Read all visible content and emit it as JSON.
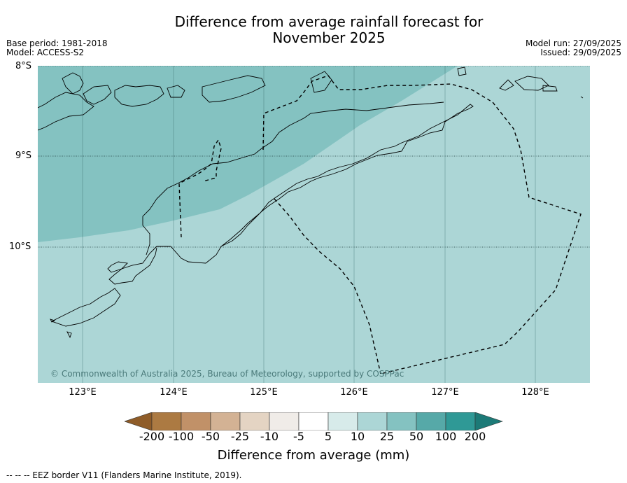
{
  "title": {
    "line1": "Difference from average rainfall forecast for",
    "line2": "November 2025"
  },
  "meta": {
    "base_period": "Base period: 1981-2018",
    "model": "Model: ACCESS-S2",
    "model_run": "Model run: 27/09/2025",
    "issued": "Issued: 29/09/2025"
  },
  "map": {
    "lat_labels": [
      "8°S",
      "9°S",
      "10°S"
    ],
    "lon_labels": [
      "123°E",
      "124°E",
      "125°E",
      "126°E",
      "127°E",
      "128°E"
    ],
    "watermark": "© Commonwealth of Australia 2025, Bureau of Meteorology, supported by COSPPac",
    "fill_colors": {
      "band_25_50": "#84c2c1",
      "band_10_25": "#acd6d6"
    }
  },
  "colorbar": {
    "title": "Difference from average (mm)",
    "tick_labels": [
      "-200",
      "-100",
      "-50",
      "-25",
      "-10",
      "-5",
      "5",
      "10",
      "25",
      "50",
      "100",
      "200"
    ],
    "colors": [
      "#8f5c28",
      "#ac7a42",
      "#c19168",
      "#d3b294",
      "#e4d4c3",
      "#f0ece8",
      "#ffffff",
      "#d7ebea",
      "#acd6d6",
      "#84c2c1",
      "#56a9a8",
      "#2f9996",
      "#1c7a77"
    ]
  },
  "footer": {
    "legend_text": "--  --  -- EEZ border V11 (Flanders Marine Institute, 2019)."
  }
}
